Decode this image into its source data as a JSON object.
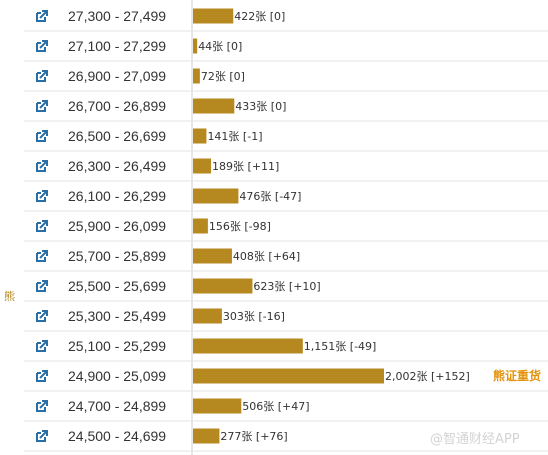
{
  "colors": {
    "bar": "#b5891f",
    "icon": "#2a6ea6",
    "text": "#333333",
    "divider": "#e6e6e6",
    "axis": "#cfcfcf",
    "side_label": "#b5891f",
    "highlight": "#e3940f",
    "watermark": "#cccccc"
  },
  "side_label": "熊",
  "highlight_label": "熊证重货",
  "watermark": "@智通财经APP",
  "row_icon": "external-link-icon",
  "chart_data": {
    "type": "bar",
    "orientation": "horizontal",
    "categories": [
      "27,300 - 27,499",
      "27,100 - 27,299",
      "26,900 - 27,099",
      "26,700 - 26,899",
      "26,500 - 26,699",
      "26,300 - 26,499",
      "26,100 - 26,299",
      "25,900 - 26,099",
      "25,700 - 25,899",
      "25,500 - 25,699",
      "25,300 - 25,499",
      "25,100 - 25,299",
      "24,900 - 25,099",
      "24,700 - 24,899",
      "24,500 - 24,699"
    ],
    "values": [
      422,
      44,
      72,
      433,
      141,
      189,
      476,
      156,
      408,
      623,
      303,
      1151,
      2002,
      506,
      277
    ],
    "value_labels": [
      "422张 [0]",
      "44张 [0]",
      "72张 [0]",
      "433张 [0]",
      "141张 [-1]",
      "189张 [+11]",
      "476张 [-47]",
      "156张 [-98]",
      "408张 [+64]",
      "623张 [+10]",
      "303张 [-16]",
      "1,151张 [-49]",
      "2,002张 [+152]",
      "506张 [+47]",
      "277张 [+76]"
    ],
    "changes": [
      0,
      0,
      0,
      0,
      -1,
      11,
      -47,
      -98,
      64,
      10,
      -16,
      -49,
      152,
      47,
      76
    ],
    "xlim": [
      0,
      2002
    ],
    "grid": false,
    "legend": "none"
  }
}
